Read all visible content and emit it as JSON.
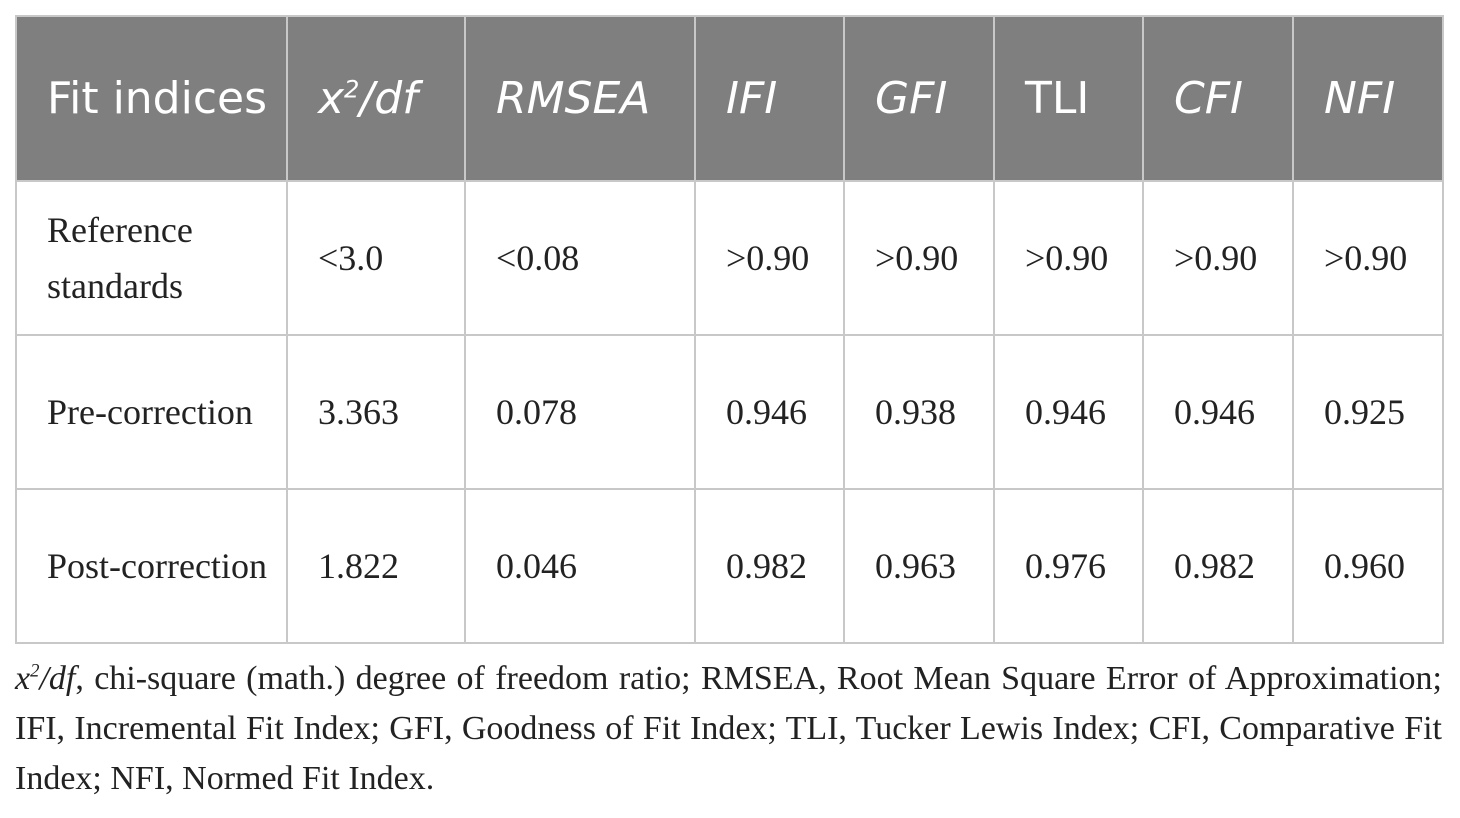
{
  "table": {
    "header": {
      "fit_indices": "Fit indices",
      "chi_base": "x",
      "chi_exp": "2",
      "chi_suffix": "/df",
      "rmsea": "RMSEA",
      "ifi": "IFI",
      "gfi": "GFI",
      "tli": "TLI",
      "cfi": "CFI",
      "nfi": "NFI"
    },
    "rows": [
      {
        "label": "Reference standards",
        "chi_df": "<3.0",
        "rmsea": "<0.08",
        "ifi": ">0.90",
        "gfi": ">0.90",
        "tli": ">0.90",
        "cfi": ">0.90",
        "nfi": ">0.90"
      },
      {
        "label": "Pre-correction",
        "chi_df": "3.363",
        "rmsea": "0.078",
        "ifi": "0.946",
        "gfi": "0.938",
        "tli": "0.946",
        "cfi": "0.946",
        "nfi": "0.925"
      },
      {
        "label": "Post-correction",
        "chi_df": "1.822",
        "rmsea": "0.046",
        "ifi": "0.982",
        "gfi": "0.963",
        "tli": "0.976",
        "cfi": "0.982",
        "nfi": "0.960"
      }
    ]
  },
  "footnote": {
    "symbol_base": "x",
    "symbol_exp": "2",
    "symbol_suffix": "/df",
    "text": ", chi-square (math.) degree of freedom ratio; RMSEA, Root Mean Square Error of Approximation; IFI, Incremental Fit Index; GFI, Goodness of Fit Index; TLI, Tucker Lewis Index; CFI, Comparative Fit Index; NFI, Normed Fit Index."
  }
}
